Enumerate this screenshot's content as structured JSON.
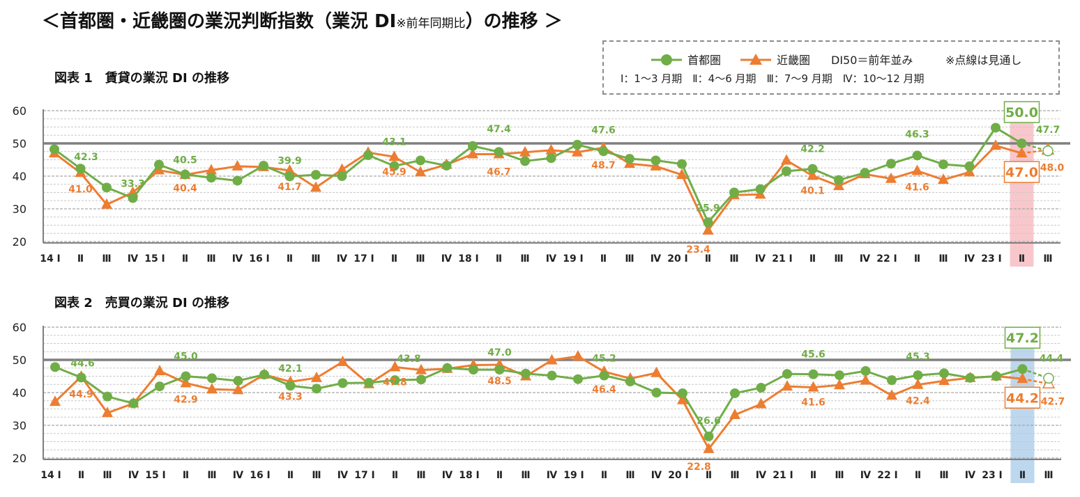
{
  "header": {
    "title_pre": "＜首都圏・近畿圏の業況判断指数（業況 DI",
    "title_small": "※前年同期比",
    "title_post": "）の推移 ＞"
  },
  "legend": {
    "series1": "首都圏",
    "series2": "近畿圏",
    "baseline_note": "DI50＝前年並み",
    "forecast_note": "※点線は見通し",
    "quarters_note": "Ⅰ：1～3 月期　Ⅱ：4～6 月期　Ⅲ：7～9 月期　Ⅳ：10～12 月期"
  },
  "colors": {
    "tokyo": "#70AD47",
    "kinki": "#ED7D31",
    "baseline": "#7f7f7f",
    "grid": "#bfbfbf",
    "highlight1": "#F8C7CC",
    "highlight2": "#BDD7EE"
  },
  "chart_data": [
    {
      "type": "line",
      "title": "図表 1　賃貸の業況 DI の推移",
      "ylim": [
        20,
        60
      ],
      "yticks": [
        20,
        30,
        40,
        50,
        60
      ],
      "baseline": 50,
      "categories": [
        "14 Ⅰ",
        "Ⅱ",
        "Ⅲ",
        "Ⅳ",
        "15 Ⅰ",
        "Ⅱ",
        "Ⅲ",
        "Ⅳ",
        "16 Ⅰ",
        "Ⅱ",
        "Ⅲ",
        "Ⅳ",
        "17 Ⅰ",
        "Ⅱ",
        "Ⅲ",
        "Ⅳ",
        "18 Ⅰ",
        "Ⅱ",
        "Ⅲ",
        "Ⅳ",
        "19 Ⅰ",
        "Ⅱ",
        "Ⅲ",
        "Ⅳ",
        "20 Ⅰ",
        "Ⅱ",
        "Ⅲ",
        "Ⅳ",
        "21 Ⅰ",
        "Ⅱ",
        "Ⅲ",
        "Ⅳ",
        "22 Ⅰ",
        "Ⅱ",
        "Ⅲ",
        "Ⅳ",
        "23 Ⅰ",
        "Ⅱ",
        "Ⅲ"
      ],
      "highlight_index": 37,
      "series": [
        {
          "name": "首都圏",
          "values": [
            48.2,
            42.3,
            36.5,
            33.3,
            43.5,
            40.5,
            39.5,
            38.6,
            43.2,
            39.9,
            40.4,
            40.0,
            46.4,
            43.1,
            44.8,
            43.2,
            49.2,
            47.4,
            44.6,
            45.5,
            49.6,
            47.6,
            45.3,
            44.8,
            43.7,
            25.9,
            35.0,
            36.0,
            41.5,
            42.2,
            38.8,
            41.0,
            43.8,
            46.3,
            43.6,
            43.0,
            54.8,
            50.0,
            47.7
          ],
          "forecast_from": 37
        },
        {
          "name": "近畿圏",
          "values": [
            47.0,
            41.0,
            31.3,
            35.0,
            41.8,
            40.4,
            41.8,
            43.0,
            42.8,
            41.7,
            36.5,
            42.0,
            47.2,
            45.9,
            41.2,
            43.5,
            46.7,
            46.7,
            47.3,
            47.9,
            47.3,
            48.7,
            43.8,
            43.0,
            40.4,
            23.4,
            34.2,
            34.4,
            44.8,
            40.1,
            37.0,
            40.6,
            39.2,
            41.6,
            38.9,
            41.2,
            49.3,
            47.0,
            48.0
          ],
          "forecast_from": 37
        }
      ],
      "labels": [
        {
          "s": 0,
          "i": 1,
          "t": "42.3"
        },
        {
          "s": 0,
          "i": 3,
          "t": "33.3"
        },
        {
          "s": 0,
          "i": 5,
          "t": "40.5"
        },
        {
          "s": 0,
          "i": 9,
          "t": "39.9"
        },
        {
          "s": 0,
          "i": 13,
          "t": "43.1"
        },
        {
          "s": 0,
          "i": 17,
          "t": "47.4"
        },
        {
          "s": 0,
          "i": 21,
          "t": "47.6"
        },
        {
          "s": 0,
          "i": 25,
          "t": "25.9"
        },
        {
          "s": 0,
          "i": 29,
          "t": "42.2"
        },
        {
          "s": 0,
          "i": 33,
          "t": "46.3"
        },
        {
          "s": 0,
          "i": 37,
          "t": "50.0",
          "boxed": true
        },
        {
          "s": 0,
          "i": 38,
          "t": "47.7"
        },
        {
          "s": 1,
          "i": 1,
          "t": "41.0"
        },
        {
          "s": 1,
          "i": 5,
          "t": "40.4"
        },
        {
          "s": 1,
          "i": 9,
          "t": "41.7"
        },
        {
          "s": 1,
          "i": 13,
          "t": "45.9"
        },
        {
          "s": 1,
          "i": 17,
          "t": "46.7"
        },
        {
          "s": 1,
          "i": 21,
          "t": "48.7"
        },
        {
          "s": 1,
          "i": 25,
          "t": "23.4"
        },
        {
          "s": 1,
          "i": 29,
          "t": "40.1"
        },
        {
          "s": 1,
          "i": 33,
          "t": "41.6"
        },
        {
          "s": 1,
          "i": 37,
          "t": "47.0",
          "boxed": true
        },
        {
          "s": 1,
          "i": 38,
          "t": "48.0"
        }
      ]
    },
    {
      "type": "line",
      "title": "図表 2　売買の業況 DI の推移",
      "ylim": [
        20,
        60
      ],
      "yticks": [
        20,
        30,
        40,
        50,
        60
      ],
      "baseline": 50,
      "categories": [
        "14 Ⅰ",
        "Ⅱ",
        "Ⅲ",
        "Ⅳ",
        "15 Ⅰ",
        "Ⅱ",
        "Ⅲ",
        "Ⅳ",
        "16 Ⅰ",
        "Ⅱ",
        "Ⅲ",
        "Ⅳ",
        "17 Ⅰ",
        "Ⅱ",
        "Ⅲ",
        "Ⅳ",
        "18 Ⅰ",
        "Ⅱ",
        "Ⅲ",
        "Ⅳ",
        "19 Ⅰ",
        "Ⅱ",
        "Ⅲ",
        "Ⅳ",
        "20 Ⅰ",
        "Ⅱ",
        "Ⅲ",
        "Ⅳ",
        "21 Ⅰ",
        "Ⅱ",
        "Ⅲ",
        "Ⅳ",
        "22 Ⅰ",
        "Ⅱ",
        "Ⅲ",
        "Ⅳ",
        "23 Ⅰ",
        "Ⅱ",
        "Ⅲ"
      ],
      "highlight_index": 37,
      "series": [
        {
          "name": "首都圏",
          "values": [
            47.8,
            44.6,
            38.8,
            36.7,
            41.9,
            45.0,
            44.4,
            43.6,
            45.5,
            42.1,
            41.2,
            42.9,
            43.0,
            43.8,
            44.0,
            47.5,
            47.0,
            47.0,
            45.8,
            45.2,
            44.1,
            45.2,
            43.4,
            40.0,
            39.8,
            26.6,
            39.8,
            41.5,
            45.7,
            45.6,
            45.3,
            46.6,
            43.8,
            45.3,
            45.9,
            44.5,
            45.0,
            47.2,
            44.4
          ],
          "forecast_from": 37
        },
        {
          "name": "近畿圏",
          "values": [
            37.2,
            44.9,
            33.8,
            36.7,
            46.6,
            42.9,
            41.0,
            40.8,
            45.5,
            43.3,
            44.5,
            49.4,
            42.6,
            47.8,
            46.9,
            47.3,
            48.4,
            48.5,
            45.0,
            49.9,
            51.1,
            46.4,
            44.3,
            46.0,
            37.7,
            22.8,
            33.2,
            36.5,
            41.9,
            41.6,
            42.3,
            43.7,
            39.1,
            42.4,
            43.6,
            44.5,
            45.0,
            44.2,
            42.7
          ],
          "forecast_from": 37
        }
      ],
      "labels": [
        {
          "s": 0,
          "i": 1,
          "t": "44.6"
        },
        {
          "s": 0,
          "i": 5,
          "t": "45.0"
        },
        {
          "s": 0,
          "i": 9,
          "t": "42.1"
        },
        {
          "s": 0,
          "i": 13,
          "t": "43.8"
        },
        {
          "s": 0,
          "i": 17,
          "t": "47.0"
        },
        {
          "s": 0,
          "i": 21,
          "t": "45.2"
        },
        {
          "s": 0,
          "i": 25,
          "t": "26.6"
        },
        {
          "s": 0,
          "i": 29,
          "t": "45.6"
        },
        {
          "s": 0,
          "i": 33,
          "t": "45.3"
        },
        {
          "s": 0,
          "i": 37,
          "t": "47.2",
          "boxed": true
        },
        {
          "s": 0,
          "i": 38,
          "t": "44.4"
        },
        {
          "s": 1,
          "i": 1,
          "t": "44.9"
        },
        {
          "s": 1,
          "i": 5,
          "t": "42.9"
        },
        {
          "s": 1,
          "i": 9,
          "t": "43.3"
        },
        {
          "s": 1,
          "i": 13,
          "t": "47.8"
        },
        {
          "s": 1,
          "i": 17,
          "t": "48.5"
        },
        {
          "s": 1,
          "i": 21,
          "t": "46.4"
        },
        {
          "s": 1,
          "i": 25,
          "t": "22.8"
        },
        {
          "s": 1,
          "i": 29,
          "t": "41.6"
        },
        {
          "s": 1,
          "i": 33,
          "t": "42.4"
        },
        {
          "s": 1,
          "i": 37,
          "t": "44.2",
          "boxed": true
        },
        {
          "s": 1,
          "i": 38,
          "t": "42.7"
        }
      ]
    }
  ]
}
